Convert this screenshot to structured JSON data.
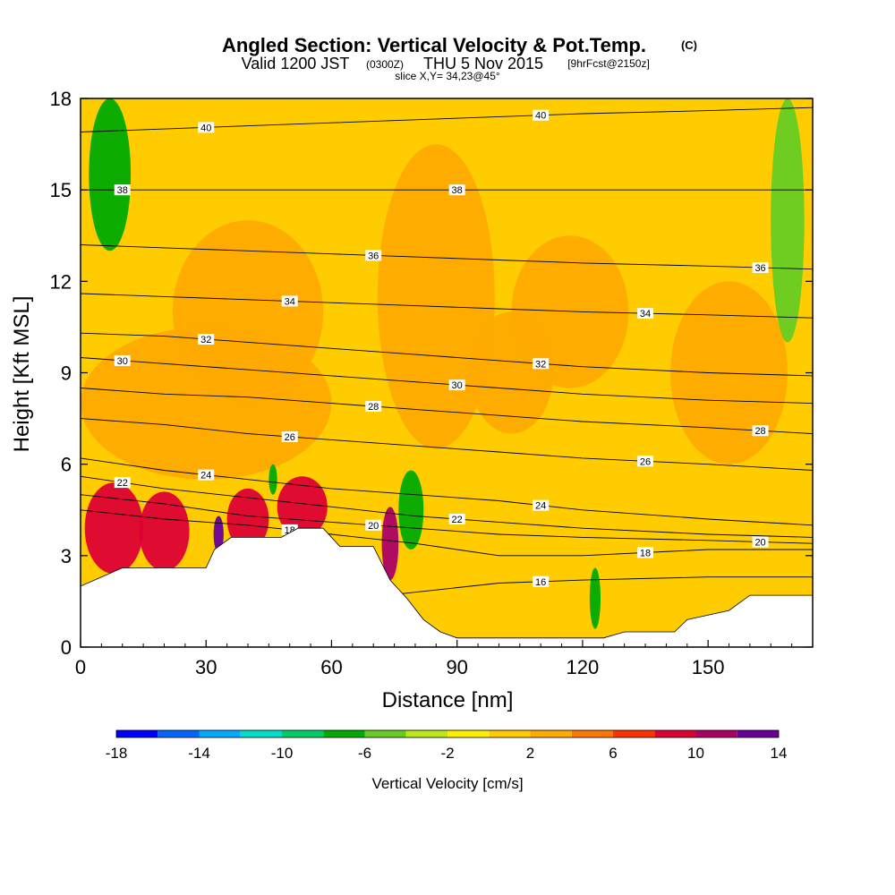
{
  "header": {
    "title": "Angled Section: Vertical Velocity & Pot.Temp.",
    "title_units": "(C)",
    "valid": "Valid 1200 JST",
    "valid_utc": "(0300Z)",
    "valid_date": "THU 5 Nov 2015",
    "forecast": "[9hrFcst@2150z]",
    "slice": "slice X,Y= 34,23@45°"
  },
  "chart_data": {
    "type": "heatmap",
    "xlabel": "Distance [nm]",
    "ylabel": "Height [Kft MSL]",
    "xlim": [
      0,
      175
    ],
    "ylim": [
      0,
      18
    ],
    "x_ticks": [
      0,
      30,
      60,
      90,
      120,
      150
    ],
    "y_ticks": [
      0,
      3,
      6,
      9,
      12,
      15,
      18
    ],
    "colorbar": {
      "label": "Vertical Velocity [cm/s]",
      "tick_values": [
        -18,
        -14,
        -10,
        -6,
        -2,
        2,
        6,
        10,
        14
      ],
      "bounds": [
        -18,
        -16,
        -14,
        -12,
        -10,
        -8,
        -6,
        -4,
        -2,
        0,
        2,
        4,
        6,
        8,
        10,
        12,
        14
      ],
      "colors": [
        "#0000ff",
        "#0066ff",
        "#00aaff",
        "#00ddcc",
        "#00cc66",
        "#00aa00",
        "#66cc22",
        "#bbe61a",
        "#ffee00",
        "#ffcc00",
        "#ffaa00",
        "#ff7700",
        "#ff3300",
        "#dd0033",
        "#aa0066",
        "#660099"
      ]
    },
    "terrain_top_kft": [
      [
        0,
        2.0
      ],
      [
        5,
        2.3
      ],
      [
        10,
        2.6
      ],
      [
        30,
        2.6
      ],
      [
        32,
        3.2
      ],
      [
        36,
        3.6
      ],
      [
        48,
        3.6
      ],
      [
        52,
        3.9
      ],
      [
        58,
        3.9
      ],
      [
        62,
        3.3
      ],
      [
        70,
        3.3
      ],
      [
        74,
        2.2
      ],
      [
        78,
        1.6
      ],
      [
        82,
        0.9
      ],
      [
        86,
        0.5
      ],
      [
        90,
        0.3
      ],
      [
        122,
        0.3
      ],
      [
        125,
        0.3
      ],
      [
        130,
        0.5
      ],
      [
        142,
        0.5
      ],
      [
        145,
        0.9
      ],
      [
        155,
        1.2
      ],
      [
        160,
        1.7
      ],
      [
        175,
        1.7
      ]
    ],
    "velocity_regions": [
      {
        "value": 3,
        "x": 40,
        "y": 11,
        "rx": 18,
        "ry": 3
      },
      {
        "value": 3,
        "x": 85,
        "y": 11.5,
        "rx": 14,
        "ry": 5
      },
      {
        "value": 3,
        "x": 117,
        "y": 11,
        "rx": 14,
        "ry": 2.5
      },
      {
        "value": 3,
        "x": 155,
        "y": 9,
        "rx": 14,
        "ry": 3
      },
      {
        "value": 3,
        "x": 30,
        "y": 8,
        "rx": 30,
        "ry": 2.5
      },
      {
        "value": 3,
        "x": 103,
        "y": 9,
        "rx": 10,
        "ry": 2
      },
      {
        "value": 8,
        "x": 8,
        "y": 3.9,
        "rx": 7,
        "ry": 1.5
      },
      {
        "value": 8,
        "x": 20,
        "y": 3.8,
        "rx": 6,
        "ry": 1.3
      },
      {
        "value": 8,
        "x": 40,
        "y": 4.2,
        "rx": 5,
        "ry": 1.0
      },
      {
        "value": 8,
        "x": 53,
        "y": 4.6,
        "rx": 6,
        "ry": 1.0
      },
      {
        "value": 10,
        "x": 74,
        "y": 3.4,
        "rx": 2,
        "ry": 1.2
      },
      {
        "value": 13,
        "x": 33,
        "y": 3.7,
        "rx": 1.2,
        "ry": 0.6
      },
      {
        "value": -7,
        "x": 7,
        "y": 15.5,
        "rx": 5,
        "ry": 2.5
      },
      {
        "value": -7,
        "x": 79,
        "y": 4.5,
        "rx": 3,
        "ry": 1.3
      },
      {
        "value": -7,
        "x": 46,
        "y": 5.5,
        "rx": 1,
        "ry": 0.5
      },
      {
        "value": -7,
        "x": 123,
        "y": 1.6,
        "rx": 1.3,
        "ry": 1.0
      },
      {
        "value": -5,
        "x": 169,
        "y": 14,
        "rx": 4,
        "ry": 4
      }
    ],
    "theta_contours": [
      {
        "label": "16",
        "heights": [
          1.2,
          1.2,
          1.3,
          1.5,
          1.8,
          2.1,
          2.2,
          2.3,
          2.3
        ]
      },
      {
        "label": "18",
        "heights": [
          4.5,
          4.2,
          4.0,
          3.7,
          3.4,
          3.0,
          3.0,
          3.2,
          3.2
        ]
      },
      {
        "label": "20",
        "heights": [
          5.0,
          4.7,
          4.3,
          4.1,
          3.9,
          3.7,
          3.6,
          3.5,
          3.4
        ]
      },
      {
        "label": "22",
        "heights": [
          5.6,
          5.2,
          4.9,
          4.6,
          4.3,
          4.1,
          3.9,
          3.7,
          3.6
        ]
      },
      {
        "label": "24",
        "heights": [
          6.2,
          5.8,
          5.5,
          5.2,
          5.0,
          4.8,
          4.5,
          4.2,
          4.0
        ]
      },
      {
        "label": "26",
        "heights": [
          7.5,
          7.3,
          7.0,
          6.8,
          6.6,
          6.4,
          6.2,
          6.0,
          5.8
        ]
      },
      {
        "label": "28",
        "heights": [
          8.5,
          8.3,
          8.2,
          8.0,
          7.8,
          7.6,
          7.4,
          7.2,
          7.0
        ]
      },
      {
        "label": "30",
        "heights": [
          9.5,
          9.3,
          9.1,
          8.9,
          8.7,
          8.5,
          8.3,
          8.1,
          8.0
        ]
      },
      {
        "label": "32",
        "heights": [
          10.3,
          10.2,
          10.0,
          9.8,
          9.6,
          9.4,
          9.2,
          9.0,
          8.9
        ]
      },
      {
        "label": "34",
        "heights": [
          11.6,
          11.5,
          11.4,
          11.3,
          11.2,
          11.1,
          11.0,
          10.9,
          10.8
        ]
      },
      {
        "label": "36",
        "heights": [
          13.2,
          13.1,
          13.0,
          12.9,
          12.8,
          12.7,
          12.6,
          12.5,
          12.4
        ]
      },
      {
        "label": "38",
        "heights": [
          15.0,
          15.0,
          15.0,
          15.0,
          15.0,
          15.0,
          15.0,
          15.0,
          15.0
        ]
      },
      {
        "label": "40",
        "heights": [
          16.9,
          17.0,
          17.1,
          17.2,
          17.3,
          17.4,
          17.5,
          17.6,
          17.7
        ]
      }
    ],
    "contour_x_nm": [
      0,
      20,
      40,
      60,
      80,
      100,
      120,
      150,
      175
    ]
  }
}
